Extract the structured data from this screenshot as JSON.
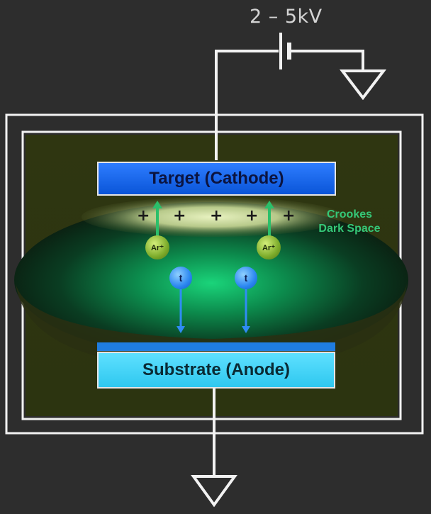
{
  "supply": {
    "voltage_label": "2 – 5kV"
  },
  "electrodes": {
    "target_label": "Target (Cathode)",
    "substrate_label": "Substrate (Anode)"
  },
  "regions": {
    "crookes_line1": "Crookes",
    "crookes_line2": "Dark Space"
  },
  "particles": {
    "plus_symbol": "+",
    "ion_label": "Ar⁺",
    "electron_label": "t"
  },
  "colors": {
    "target": "#1565e6",
    "substrate": "#3fd3f5",
    "plasma_glow": "#16c46a",
    "crookes_text": "#35c878",
    "wire": "#f2f2f2"
  }
}
